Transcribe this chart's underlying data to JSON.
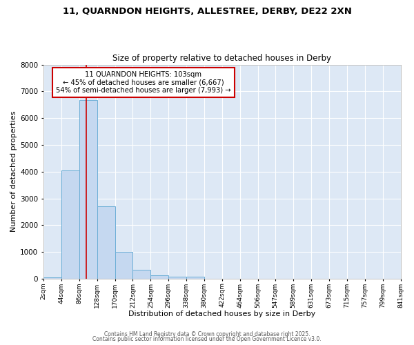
{
  "title_line1": "11, QUARNDON HEIGHTS, ALLESTREE, DERBY, DE22 2XN",
  "title_line2": "Size of property relative to detached houses in Derby",
  "xlabel": "Distribution of detached houses by size in Derby",
  "ylabel": "Number of detached properties",
  "property_size": 103,
  "annotation_line1": "11 QUARNDON HEIGHTS: 103sqm",
  "annotation_line2": "← 45% of detached houses are smaller (6,667)",
  "annotation_line3": "54% of semi-detached houses are larger (7,993) →",
  "bin_edges": [
    2,
    44,
    86,
    128,
    170,
    212,
    254,
    296,
    338,
    380,
    422,
    464,
    506,
    547,
    589,
    631,
    673,
    715,
    757,
    799,
    841
  ],
  "bin_counts": [
    50,
    4050,
    6667,
    2700,
    1000,
    320,
    120,
    80,
    80,
    0,
    0,
    0,
    0,
    0,
    0,
    0,
    0,
    0,
    0,
    0
  ],
  "bar_color": "#c5d8f0",
  "bar_edge_color": "#6baed6",
  "red_line_color": "#cc0000",
  "annotation_box_edge_color": "#cc0000",
  "annotation_box_face_color": "#ffffff",
  "figure_bg_color": "#ffffff",
  "plot_bg_color": "#dde8f5",
  "grid_color": "#ffffff",
  "ylim": [
    0,
    8000
  ],
  "yticks": [
    0,
    1000,
    2000,
    3000,
    4000,
    5000,
    6000,
    7000,
    8000
  ],
  "footer_line1": "Contains HM Land Registry data © Crown copyright and database right 2025.",
  "footer_line2": "Contains public sector information licensed under the Open Government Licence v3.0."
}
